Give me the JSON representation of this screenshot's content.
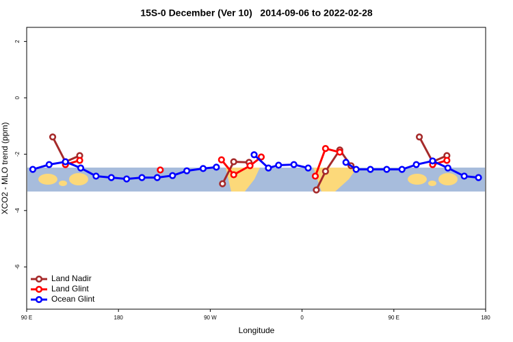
{
  "chart_data": {
    "type": "line",
    "title": "15S-0 December (Ver 10)   2014-09-06 to 2022-02-28",
    "x_label": "Longitude",
    "y_label": "XCO2 - MLO trend (ppm)",
    "xlim": [
      90,
      540
    ],
    "xticks": [
      {
        "value": 90,
        "label": "90 E"
      },
      {
        "value": 180,
        "label": "180"
      },
      {
        "value": 270,
        "label": "90 W"
      },
      {
        "value": 360,
        "label": "0"
      },
      {
        "value": 450,
        "label": "90 E"
      },
      {
        "value": 540,
        "label": "180"
      }
    ],
    "ylim": [
      -7.5,
      2.5
    ],
    "yticks": [
      -6,
      -4,
      -2,
      0,
      2
    ],
    "legend": "bottom-left",
    "series": [
      {
        "name": "Land Nadir",
        "color": "#a52a2a",
        "x": [
          115.5,
          128,
          142,
          null,
          282,
          293,
          308,
          null,
          374,
          383,
          397,
          408,
          null,
          475,
          488,
          502
        ],
        "values": [
          -1.39,
          -2.27,
          -2.05,
          null,
          -3.05,
          -2.27,
          -2.29,
          null,
          -3.27,
          -2.61,
          -1.85,
          -2.41,
          null,
          -1.39,
          -2.27,
          -2.05
        ]
      },
      {
        "name": "Land Glint",
        "color": "#ff0000",
        "x": [
          128,
          142,
          null,
          221,
          null,
          281,
          293,
          309,
          320,
          null,
          373,
          383,
          397,
          null,
          488,
          502
        ],
        "values": [
          -2.37,
          -2.22,
          null,
          -2.56,
          null,
          -2.2,
          -2.73,
          -2.41,
          -2.1,
          null,
          -2.78,
          -1.8,
          -1.93,
          null,
          -2.37,
          -2.22
        ]
      },
      {
        "name": "Ocean Glint",
        "color": "#0000ff",
        "x": [
          96,
          112,
          128,
          143,
          158,
          173,
          188,
          203,
          218,
          233,
          247,
          263,
          276,
          null,
          313,
          327,
          337,
          352,
          366,
          null,
          403,
          413,
          427,
          443,
          458,
          472,
          488,
          503,
          519,
          533
        ],
        "values": [
          -2.54,
          -2.37,
          -2.27,
          -2.49,
          -2.78,
          -2.83,
          -2.88,
          -2.83,
          -2.83,
          -2.76,
          -2.59,
          -2.51,
          -2.46,
          null,
          -2.02,
          -2.49,
          -2.39,
          -2.37,
          -2.49,
          null,
          -2.29,
          -2.54,
          -2.54,
          -2.54,
          -2.54,
          -2.37,
          -2.24,
          -2.49,
          -2.78,
          -2.83
        ]
      }
    ]
  }
}
